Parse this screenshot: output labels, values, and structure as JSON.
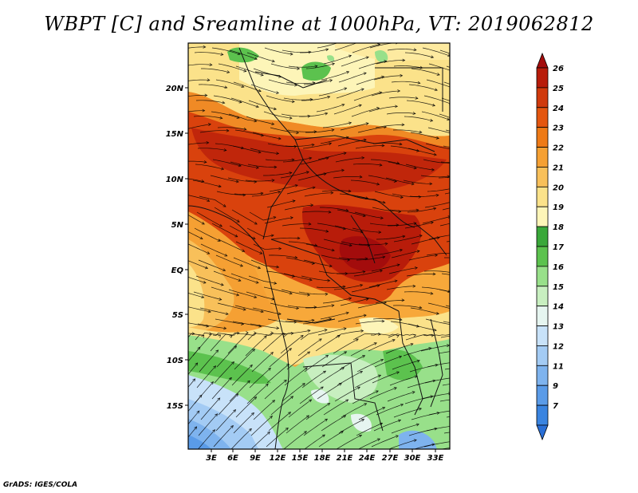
{
  "title": "WBPT [C] and Sreamline at 1000hPa, VT: 2019062812",
  "credit": "GrADS: IGES/COLA",
  "lat_labels": [
    "20N",
    "15N",
    "10N",
    "5N",
    "EQ",
    "5S",
    "10S",
    "15S"
  ],
  "lon_labels": [
    "3E",
    "6E",
    "9E",
    "12E",
    "15E",
    "18E",
    "21E",
    "24E",
    "27E",
    "30E",
    "33E"
  ],
  "colorbar": {
    "labels": [
      "7",
      "9",
      "11",
      "12",
      "13",
      "14",
      "15",
      "16",
      "17",
      "18",
      "19",
      "20",
      "21",
      "22",
      "23",
      "24",
      "25",
      "26"
    ],
    "colors": [
      "#2a6fd6",
      "#3a84e0",
      "#5a9be8",
      "#7eb3ee",
      "#a3cbf4",
      "#c8e2f9",
      "#e6f5f0",
      "#c8efc0",
      "#98e08a",
      "#5cc24e",
      "#3aa83a",
      "#fdf5b8",
      "#fbe28a",
      "#f8c05a",
      "#f5a033",
      "#ee7a16",
      "#e4560f",
      "#d03a0c",
      "#b81c0a",
      "#a30c0c"
    ]
  }
}
